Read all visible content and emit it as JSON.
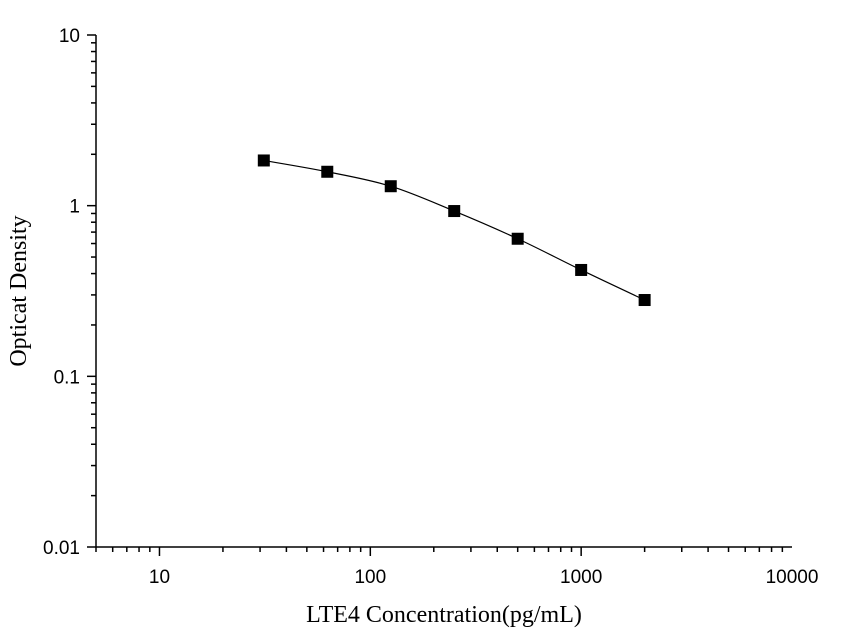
{
  "chart_data": {
    "type": "scatter",
    "xlabel": "LTE4  Concentration(pg/mL)",
    "ylabel": "Opticat Density",
    "xscale": "log",
    "yscale": "log",
    "xlim": [
      5,
      10000
    ],
    "ylim": [
      0.01,
      10
    ],
    "x_ticks": [
      10,
      100,
      1000,
      10000
    ],
    "x_tick_labels": [
      "10",
      "100",
      "1000",
      "10000"
    ],
    "y_ticks": [
      0.01,
      0.1,
      1,
      10
    ],
    "y_tick_labels": [
      "0.01",
      "0.1",
      "1",
      "10"
    ],
    "grid": false,
    "legend": "none",
    "marker": "square",
    "fit_line": true,
    "series": [
      {
        "x": [
          31.25,
          62.5,
          125,
          250,
          500,
          1000,
          2000
        ],
        "y": [
          1.84,
          1.58,
          1.3,
          0.93,
          0.64,
          0.42,
          0.28
        ]
      }
    ],
    "colors": {
      "marker": "#000000",
      "line": "#000000"
    }
  }
}
